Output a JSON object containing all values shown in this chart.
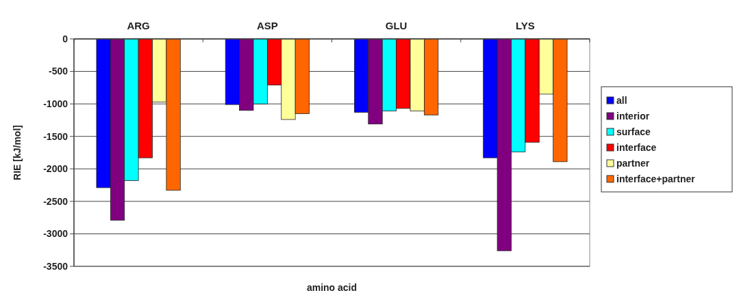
{
  "chart_data": {
    "type": "bar",
    "xlabel": "amino acid",
    "ylabel": "RIE [kJ/mol]",
    "categories": [
      "ARG",
      "ASP",
      "GLU",
      "LYS"
    ],
    "series": [
      {
        "name": "all",
        "color": "#0000ff",
        "values": [
          -2290,
          -1010,
          -1130,
          -1830
        ]
      },
      {
        "name": "interior",
        "color": "#800080",
        "values": [
          -2790,
          -1100,
          -1310,
          -3260
        ]
      },
      {
        "name": "surface",
        "color": "#00ffff",
        "values": [
          -2180,
          -1000,
          -1110,
          -1740
        ]
      },
      {
        "name": "interface",
        "color": "#ff0000",
        "values": [
          -1830,
          -710,
          -1070,
          -1590
        ]
      },
      {
        "name": "partner",
        "color": "#ffff99",
        "values": [
          -970,
          -1240,
          -1110,
          -850
        ]
      },
      {
        "name": "interface+partner",
        "color": "#ff6600",
        "values": [
          -2330,
          -1150,
          -1170,
          -1890
        ]
      }
    ],
    "ylim": [
      -3500,
      0
    ],
    "yticks": [
      -3500,
      -3000,
      -2500,
      -2000,
      -1500,
      -1000,
      -500,
      0
    ],
    "grid": "y",
    "legend": "right"
  }
}
